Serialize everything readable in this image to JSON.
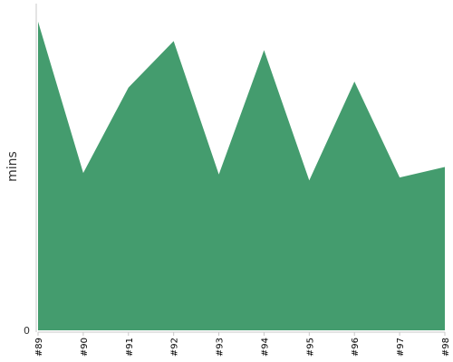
{
  "chart_data": {
    "type": "area",
    "categories": [
      "#89",
      "#90",
      "#91",
      "#92",
      "#93",
      "#94",
      "#95",
      "#96",
      "#97",
      "#98"
    ],
    "series": [
      {
        "values": [
          103,
          52.5,
          81,
          96.5,
          52,
          93.5,
          50,
          83,
          51,
          54.5
        ],
        "color": "#449c6e"
      }
    ],
    "ylabel": "mins",
    "yticks": [
      0
    ],
    "ylim": [
      0,
      109
    ],
    "grid": false,
    "legend": false
  }
}
